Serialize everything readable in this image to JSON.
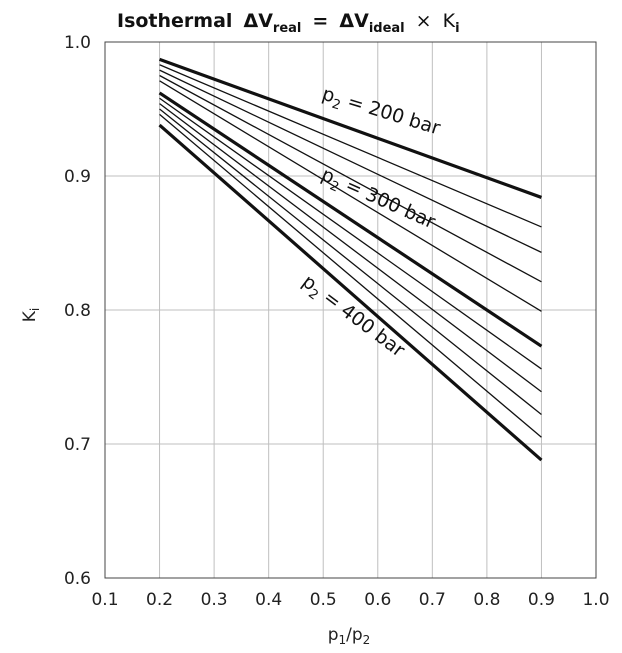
{
  "chart_data": {
    "type": "line",
    "title": {
      "word": "Isothermal",
      "delta": "ΔV",
      "real_sub": "real",
      "equals": "=",
      "delta2": "ΔV",
      "ideal_sub": "ideal",
      "times": "×",
      "k": "K",
      "k_sub": "i"
    },
    "xlabel": {
      "main": "p",
      "sub1": "1",
      "slash": "/p",
      "sub2": "2"
    },
    "ylabel": {
      "main": "K",
      "sub": "i"
    },
    "xlim": [
      0.1,
      1.0
    ],
    "ylim": [
      0.6,
      1.0
    ],
    "x_ticks": [
      "0.1",
      "0.2",
      "0.3",
      "0.4",
      "0.5",
      "0.6",
      "0.7",
      "0.8",
      "0.9",
      "1.0"
    ],
    "y_ticks": [
      "0.6",
      "0.7",
      "0.8",
      "0.9",
      "1.0"
    ],
    "grid": true,
    "series": [
      {
        "name": "p2 = 200 bar",
        "x": [
          0.2,
          0.9
        ],
        "y": [
          0.987,
          0.884
        ],
        "bold": true
      },
      {
        "x": [
          0.2,
          0.9
        ],
        "y": [
          0.983,
          0.862
        ],
        "bold": false
      },
      {
        "x": [
          0.2,
          0.9
        ],
        "y": [
          0.979,
          0.843
        ],
        "bold": false
      },
      {
        "x": [
          0.2,
          0.9
        ],
        "y": [
          0.975,
          0.821
        ],
        "bold": false
      },
      {
        "x": [
          0.2,
          0.9
        ],
        "y": [
          0.971,
          0.799
        ],
        "bold": false
      },
      {
        "name": "p2 = 300 bar",
        "x": [
          0.2,
          0.9
        ],
        "y": [
          0.962,
          0.773
        ],
        "bold": true
      },
      {
        "x": [
          0.2,
          0.9
        ],
        "y": [
          0.958,
          0.756
        ],
        "bold": false
      },
      {
        "x": [
          0.2,
          0.9
        ],
        "y": [
          0.954,
          0.739
        ],
        "bold": false
      },
      {
        "x": [
          0.2,
          0.9
        ],
        "y": [
          0.95,
          0.722
        ],
        "bold": false
      },
      {
        "x": [
          0.2,
          0.9
        ],
        "y": [
          0.946,
          0.705
        ],
        "bold": false
      },
      {
        "name": "p2 = 400 bar",
        "x": [
          0.2,
          0.9
        ],
        "y": [
          0.938,
          0.688
        ],
        "bold": true
      }
    ],
    "annotations": [
      {
        "pre": "p",
        "sub": "2",
        "post": " = 200 bar"
      },
      {
        "pre": "p",
        "sub": "2",
        "post": " = 300 bar"
      },
      {
        "pre": "p",
        "sub": "2",
        "post": " = 400 bar"
      }
    ]
  }
}
